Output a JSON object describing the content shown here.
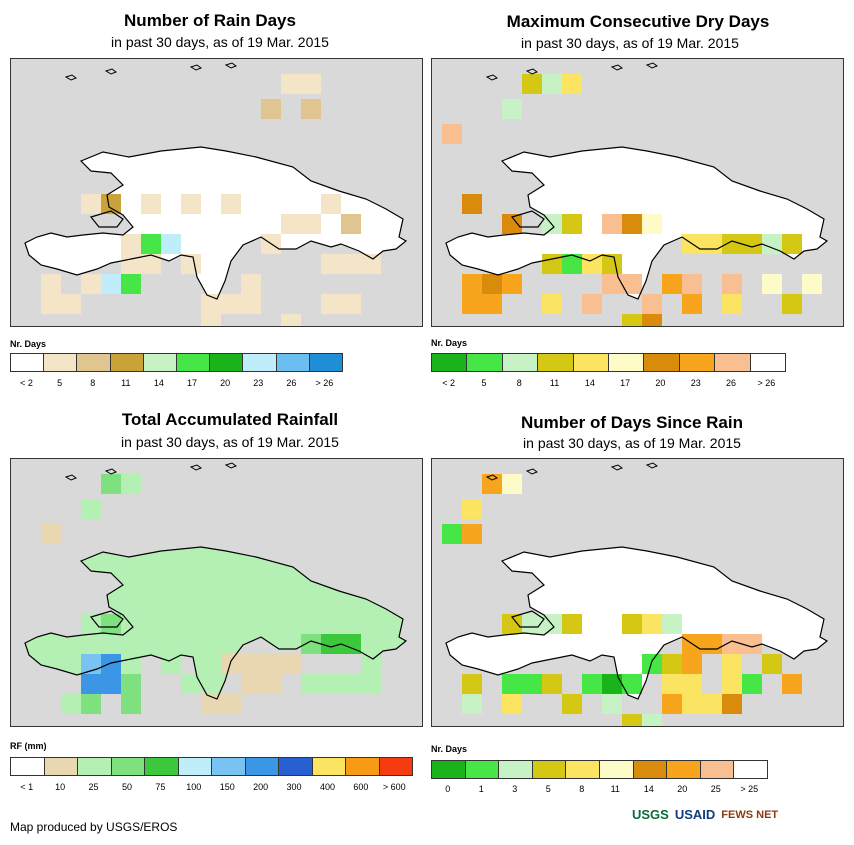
{
  "panels": [
    {
      "title": "Number of Rain Days",
      "subtitle": "in past 30 days, as of 19 Mar. 2015",
      "legend_title": "Nr. Days",
      "legend_colors": [
        "#ffffff",
        "#f4e4c8",
        "#e0c590",
        "#c9a23a",
        "#c6f2c6",
        "#46e646",
        "#1ab41a",
        "#bfeefa",
        "#6cbdf0",
        "#1e8fd6"
      ],
      "legend_labels": [
        "< 2",
        "5",
        "8",
        "11",
        "14",
        "17",
        "20",
        "23",
        "26",
        "> 26"
      ]
    },
    {
      "title": "Maximum Consecutive Dry Days",
      "subtitle": "in past 30 days, as of 19 Mar. 2015",
      "legend_title": "Nr. Days",
      "legend_colors": [
        "#1ab41a",
        "#46e646",
        "#c6f2c6",
        "#d4c814",
        "#fbe462",
        "#fdfbc8",
        "#d98c0c",
        "#f7a51c",
        "#f9bf90",
        "#ffffff"
      ],
      "legend_labels": [
        "< 2",
        "5",
        "8",
        "11",
        "14",
        "17",
        "20",
        "23",
        "26",
        "> 26"
      ]
    },
    {
      "title": "Total Accumulated Rainfall",
      "subtitle": "in past 30 days, as of 19 Mar. 2015",
      "legend_title": "RF (mm)",
      "legend_colors": [
        "#ffffff",
        "#e8d7b0",
        "#b4f0b4",
        "#7ee07e",
        "#3cc83c",
        "#bfeefa",
        "#78c3f2",
        "#3c96e6",
        "#2860d2",
        "#fbe462",
        "#f79a14",
        "#f53c10"
      ],
      "legend_labels": [
        "< 1",
        "10",
        "25",
        "50",
        "75",
        "100",
        "150",
        "200",
        "300",
        "400",
        "600",
        "> 600"
      ]
    },
    {
      "title": "Number of Days Since Rain",
      "subtitle": "in past 30 days, as of 19 Mar. 2015",
      "legend_title": "Nr. Days",
      "legend_colors": [
        "#1ab41a",
        "#46e646",
        "#c6f2c6",
        "#d4c814",
        "#fbe462",
        "#fdfbc8",
        "#d98c0c",
        "#f7a51c",
        "#f9bf90",
        "#ffffff"
      ],
      "legend_labels": [
        "0",
        "1",
        "3",
        "5",
        "8",
        "11",
        "14",
        "20",
        "25",
        "> 25"
      ]
    }
  ],
  "map_cells": [
    {
      "cells": [
        [
          14,
          0,
          1
        ],
        [
          14,
          1,
          2
        ],
        [
          13,
          0,
          1
        ],
        [
          12,
          1,
          2
        ],
        [
          4,
          3,
          3
        ],
        [
          3,
          3,
          1
        ],
        [
          6,
          3,
          1
        ],
        [
          8,
          3,
          1
        ],
        [
          10,
          3,
          1
        ],
        [
          15,
          3,
          1
        ],
        [
          13,
          4,
          1
        ],
        [
          14,
          4,
          1
        ],
        [
          16,
          4,
          2
        ],
        [
          5,
          5,
          1
        ],
        [
          12,
          5,
          1
        ],
        [
          6,
          5,
          5
        ],
        [
          7,
          5,
          7
        ],
        [
          5,
          6,
          1
        ],
        [
          6,
          6,
          1
        ],
        [
          8,
          6,
          1
        ],
        [
          15,
          6,
          1
        ],
        [
          16,
          6,
          1
        ],
        [
          17,
          6,
          1
        ],
        [
          1,
          7,
          1
        ],
        [
          3,
          7,
          1
        ],
        [
          4,
          7,
          7
        ],
        [
          5,
          7,
          5
        ],
        [
          11,
          7,
          1
        ],
        [
          1,
          8,
          1
        ],
        [
          2,
          8,
          1
        ],
        [
          9,
          8,
          1
        ],
        [
          10,
          8,
          1
        ],
        [
          11,
          8,
          1
        ],
        [
          15,
          8,
          1
        ],
        [
          16,
          8,
          1
        ],
        [
          9,
          9,
          1
        ],
        [
          13,
          9,
          1
        ],
        [
          9,
          10,
          1
        ]
      ],
      "default": 0
    },
    {
      "cells": [
        [
          4,
          0,
          3
        ],
        [
          5,
          0,
          2
        ],
        [
          6,
          0,
          4
        ],
        [
          3,
          1,
          2
        ],
        [
          0,
          2,
          8
        ],
        [
          1,
          3,
          6
        ],
        [
          3,
          4,
          6
        ],
        [
          5,
          4,
          2
        ],
        [
          6,
          4,
          3
        ],
        [
          8,
          4,
          8
        ],
        [
          9,
          4,
          6
        ],
        [
          10,
          4,
          5
        ],
        [
          12,
          5,
          4
        ],
        [
          13,
          5,
          4
        ],
        [
          14,
          5,
          3
        ],
        [
          15,
          5,
          3
        ],
        [
          16,
          5,
          2
        ],
        [
          17,
          5,
          3
        ],
        [
          1,
          7,
          7
        ],
        [
          2,
          7,
          6
        ],
        [
          3,
          7,
          7
        ],
        [
          8,
          7,
          8
        ],
        [
          9,
          7,
          8
        ],
        [
          11,
          7,
          7
        ],
        [
          12,
          7,
          8
        ],
        [
          14,
          7,
          8
        ],
        [
          16,
          7,
          5
        ],
        [
          18,
          7,
          5
        ],
        [
          1,
          8,
          7
        ],
        [
          2,
          8,
          7
        ],
        [
          5,
          8,
          4
        ],
        [
          7,
          8,
          8
        ],
        [
          10,
          8,
          8
        ],
        [
          12,
          8,
          7
        ],
        [
          14,
          8,
          4
        ],
        [
          17,
          8,
          3
        ],
        [
          9,
          9,
          3
        ],
        [
          10,
          9,
          6
        ],
        [
          9,
          10,
          6
        ],
        [
          5,
          6,
          3
        ],
        [
          6,
          6,
          1
        ],
        [
          7,
          6,
          4
        ],
        [
          8,
          6,
          3
        ]
      ],
      "default": 9
    },
    {
      "cells": [
        [
          4,
          0,
          3
        ],
        [
          5,
          0,
          2
        ],
        [
          3,
          1,
          2
        ],
        [
          1,
          2,
          1
        ],
        [
          3,
          4,
          2
        ],
        [
          4,
          4,
          3
        ],
        [
          5,
          4,
          2
        ],
        [
          7,
          4,
          2
        ],
        [
          9,
          4,
          2
        ],
        [
          10,
          4,
          2
        ],
        [
          11,
          4,
          2
        ],
        [
          13,
          4,
          2
        ],
        [
          14,
          5,
          3
        ],
        [
          15,
          5,
          4
        ],
        [
          16,
          5,
          4
        ],
        [
          3,
          6,
          6
        ],
        [
          4,
          6,
          7
        ],
        [
          5,
          6,
          2
        ],
        [
          7,
          6,
          2
        ],
        [
          10,
          6,
          1
        ],
        [
          11,
          6,
          1
        ],
        [
          12,
          6,
          1
        ],
        [
          13,
          6,
          1
        ],
        [
          17,
          6,
          2
        ],
        [
          3,
          7,
          7
        ],
        [
          4,
          7,
          7
        ],
        [
          5,
          7,
          3
        ],
        [
          8,
          7,
          2
        ],
        [
          11,
          7,
          1
        ],
        [
          12,
          7,
          1
        ],
        [
          14,
          7,
          2
        ],
        [
          15,
          7,
          2
        ],
        [
          16,
          7,
          2
        ],
        [
          17,
          7,
          2
        ],
        [
          2,
          8,
          2
        ],
        [
          3,
          8,
          3
        ],
        [
          5,
          8,
          3
        ],
        [
          9,
          8,
          1
        ],
        [
          10,
          8,
          1
        ]
      ],
      "default": 2
    },
    {
      "cells": [
        [
          2,
          0,
          7
        ],
        [
          3,
          0,
          5
        ],
        [
          1,
          1,
          4
        ],
        [
          0,
          2,
          1
        ],
        [
          1,
          2,
          7
        ],
        [
          3,
          4,
          3
        ],
        [
          4,
          4,
          2
        ],
        [
          5,
          4,
          2
        ],
        [
          6,
          4,
          3
        ],
        [
          9,
          4,
          3
        ],
        [
          10,
          4,
          4
        ],
        [
          11,
          4,
          2
        ],
        [
          12,
          5,
          7
        ],
        [
          13,
          5,
          7
        ],
        [
          14,
          5,
          8
        ],
        [
          15,
          5,
          8
        ],
        [
          10,
          6,
          1
        ],
        [
          11,
          6,
          3
        ],
        [
          12,
          6,
          7
        ],
        [
          14,
          6,
          4
        ],
        [
          16,
          6,
          3
        ],
        [
          1,
          7,
          3
        ],
        [
          3,
          7,
          1
        ],
        [
          4,
          7,
          1
        ],
        [
          5,
          7,
          3
        ],
        [
          7,
          7,
          1
        ],
        [
          8,
          7,
          0
        ],
        [
          9,
          7,
          1
        ],
        [
          11,
          7,
          4
        ],
        [
          12,
          7,
          4
        ],
        [
          14,
          7,
          4
        ],
        [
          15,
          7,
          1
        ],
        [
          17,
          7,
          7
        ],
        [
          1,
          8,
          2
        ],
        [
          3,
          8,
          4
        ],
        [
          6,
          8,
          3
        ],
        [
          8,
          8,
          2
        ],
        [
          11,
          8,
          7
        ],
        [
          12,
          8,
          4
        ],
        [
          13,
          8,
          4
        ],
        [
          14,
          8,
          6
        ],
        [
          9,
          9,
          3
        ],
        [
          10,
          9,
          2
        ]
      ],
      "default": 9
    }
  ],
  "credit": "Map produced by USGS/EROS",
  "logos": [
    "USGS",
    "USAID",
    "FEWS NET"
  ]
}
